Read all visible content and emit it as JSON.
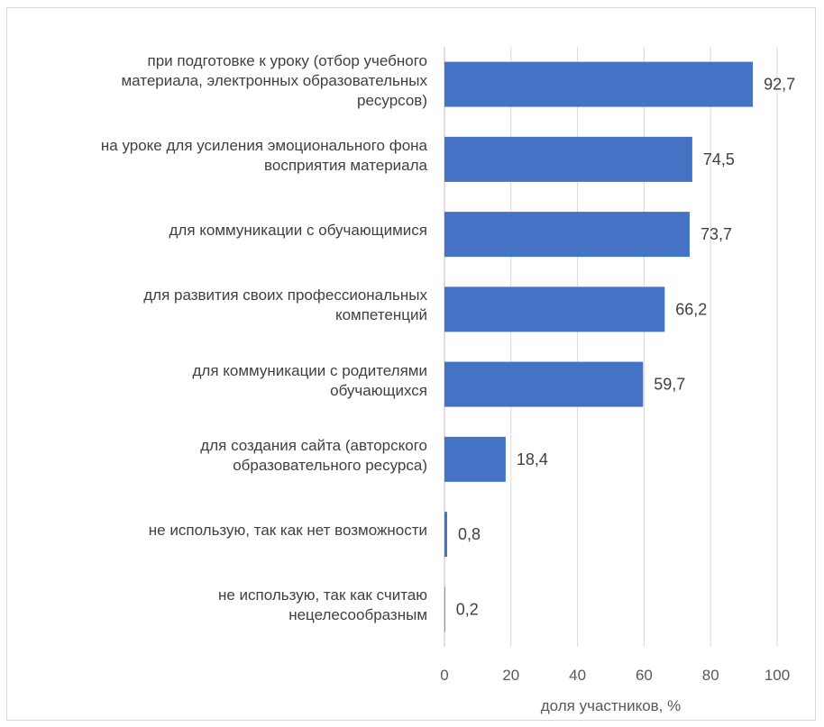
{
  "chart_data": {
    "type": "bar",
    "orientation": "horizontal",
    "categories": [
      [
        "при подготовке к уроку (отбор учебного",
        "материала, электронных образовательных",
        "ресурсов)"
      ],
      [
        "на уроке для усиления эмоционального фона",
        "восприятия материала"
      ],
      [
        "для коммуникации с обучающимися"
      ],
      [
        "для развития своих профессиональных",
        "компетенций"
      ],
      [
        "для коммуникации с родителями",
        "обучающихся"
      ],
      [
        "для создания сайта (авторского",
        "образовательного ресурса)"
      ],
      [
        "не использую, так как нет возможности"
      ],
      [
        "не использую, так как считаю",
        "нецелесообразным"
      ]
    ],
    "values": [
      92.7,
      74.5,
      73.7,
      66.2,
      59.7,
      18.4,
      0.8,
      0.2
    ],
    "value_labels": [
      "92,7",
      "74,5",
      "73,7",
      "66,2",
      "59,7",
      "18,4",
      "0,8",
      "0,2"
    ],
    "xlabel": "доля участников, %",
    "ylabel": "",
    "title": "",
    "xlim": [
      0,
      100
    ],
    "xticks": [
      "0",
      "20",
      "40",
      "60",
      "80",
      "100"
    ],
    "grid": true,
    "legend": "none",
    "colors": {
      "bar": "#4472c4",
      "grid": "#d9d9d9",
      "text": "#404040"
    }
  }
}
